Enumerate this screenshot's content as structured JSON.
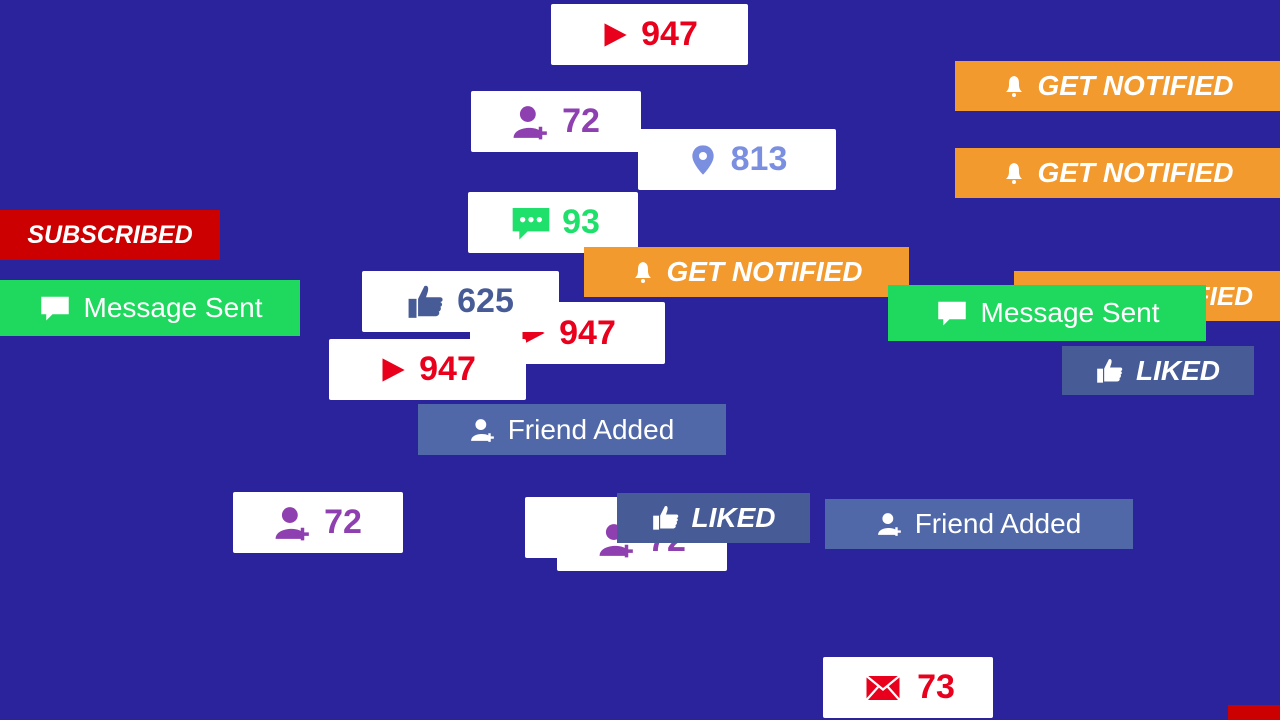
{
  "colors": {
    "background": "#2b239c",
    "youtube_red": "#e8001c",
    "friend_purple": "#8e3fb0",
    "location_blue": "#7b8fe0",
    "chat_green": "#1ee06a",
    "like_blue": "#475b96",
    "notify_orange": "#f29a2e",
    "subscribed_red": "#cc0000",
    "message_green": "#1fd95e",
    "mail_red": "#e8001c"
  },
  "badges": {
    "views_top": {
      "icon": "play-icon",
      "value": "947"
    },
    "friends_1": {
      "icon": "user-add-icon",
      "value": "72"
    },
    "location": {
      "icon": "map-pin-icon",
      "value": "813"
    },
    "comments": {
      "icon": "chat-icon",
      "value": "93"
    },
    "notify_center": {
      "icon": "bell-icon",
      "label": "GET NOTIFIED"
    },
    "views_back": {
      "icon": "play-icon",
      "value": "947"
    },
    "likes": {
      "icon": "thumbs-up-icon",
      "value": "625"
    },
    "views_front": {
      "icon": "play-icon",
      "value": "947"
    },
    "friend_added_1": {
      "icon": "user-icon",
      "label": "Friend Added"
    },
    "friends_2": {
      "icon": "user-add-icon",
      "value": "72"
    },
    "friends_3": {
      "icon": "user-add-icon",
      "value": "72"
    },
    "liked_center": {
      "icon": "thumbs-up-icon",
      "label": "LIKED"
    },
    "friend_added_2": {
      "icon": "user-icon",
      "label": "Friend Added"
    },
    "mail": {
      "icon": "envelope-icon",
      "value": "73"
    },
    "notify_top_right": {
      "icon": "bell-icon",
      "label": "GET NOTIFIED"
    },
    "notify_right": {
      "icon": "bell-icon",
      "label": "GET NOTIFIED"
    },
    "notify_right_back": {
      "icon": "bell-icon",
      "label": "GET NOTIFIED"
    },
    "message_sent_right": {
      "icon": "chat-icon",
      "label": "Message Sent"
    },
    "liked_right": {
      "icon": "thumbs-up-icon",
      "label": "LIKED"
    },
    "subscribed": {
      "label": "SUBSCRIBED"
    },
    "message_sent_left": {
      "icon": "chat-icon",
      "label": "Message Sent"
    }
  }
}
